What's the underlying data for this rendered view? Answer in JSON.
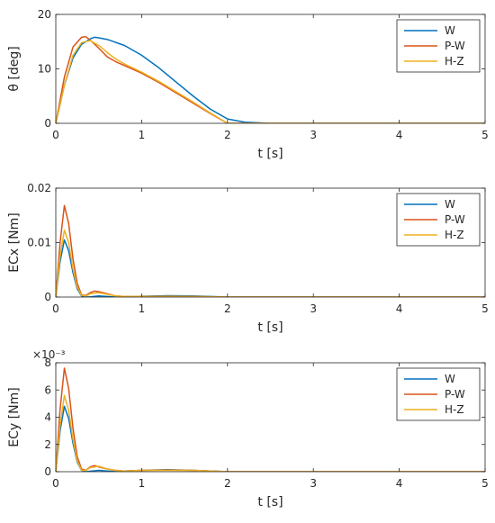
{
  "colors": {
    "W": "#0072BD",
    "P-W": "#D95319",
    "H-Z": "#EDB120",
    "axis": "#262626"
  },
  "chart_data": [
    {
      "type": "line",
      "xlabel": "t [s]",
      "ylabel": "θ [deg]",
      "xlim": [
        0,
        5
      ],
      "ylim": [
        0,
        20
      ],
      "xticks": [
        0,
        1,
        2,
        3,
        4,
        5
      ],
      "yticks": [
        0,
        10,
        20
      ],
      "ytick_labels": [
        "0",
        "10",
        "20"
      ],
      "exponent_label": "",
      "legend_position": "top-right",
      "series": [
        {
          "name": "W",
          "x": [
            0,
            0.1,
            0.2,
            0.3,
            0.4,
            0.45,
            0.5,
            0.6,
            0.8,
            1.0,
            1.2,
            1.4,
            1.6,
            1.8,
            2.0,
            2.2,
            2.5,
            5
          ],
          "y": [
            0,
            7,
            12,
            14.5,
            15.5,
            15.8,
            15.7,
            15.4,
            14.3,
            12.5,
            10.2,
            7.6,
            5,
            2.6,
            0.8,
            0.2,
            0,
            0
          ]
        },
        {
          "name": "P-W",
          "x": [
            0,
            0.1,
            0.2,
            0.3,
            0.35,
            0.4,
            0.5,
            0.6,
            0.7,
            0.8,
            1.0,
            1.2,
            1.4,
            1.6,
            1.8,
            2.0,
            5
          ],
          "y": [
            0,
            8.5,
            14,
            15.8,
            15.9,
            15.3,
            13.8,
            12.2,
            11.3,
            10.6,
            9.2,
            7.5,
            5.6,
            3.7,
            1.8,
            0,
            0
          ]
        },
        {
          "name": "H-Z",
          "x": [
            0,
            0.1,
            0.2,
            0.3,
            0.4,
            0.5,
            0.6,
            0.7,
            0.8,
            1.0,
            1.2,
            1.4,
            1.6,
            1.8,
            2.0,
            5
          ],
          "y": [
            0,
            7,
            12.5,
            14.8,
            15.2,
            14.3,
            13,
            11.8,
            10.9,
            9.4,
            7.7,
            5.8,
            3.9,
            1.9,
            0,
            0
          ]
        }
      ]
    },
    {
      "type": "line",
      "xlabel": "t [s]",
      "ylabel": "ECx [Nm]",
      "xlim": [
        0,
        5
      ],
      "ylim": [
        0,
        0.02
      ],
      "xticks": [
        0,
        1,
        2,
        3,
        4,
        5
      ],
      "yticks": [
        0,
        0.01,
        0.02
      ],
      "ytick_labels": [
        "0",
        "0.01",
        "0.02"
      ],
      "exponent_label": "",
      "legend_position": "top-right",
      "series": [
        {
          "name": "W",
          "x": [
            0,
            0.05,
            0.1,
            0.15,
            0.2,
            0.25,
            0.3,
            0.35,
            0.4,
            0.5,
            0.6,
            0.7,
            0.8,
            1.0,
            1.3,
            1.6,
            1.8,
            2.0,
            5
          ],
          "y": [
            0,
            0.0065,
            0.0105,
            0.0085,
            0.0045,
            0.0015,
            0.0002,
            0,
            5e-05,
            0.0002,
            0.0001,
            0,
            5e-05,
            0.00015,
            0.00025,
            0.0002,
            0.0001,
            0,
            0
          ]
        },
        {
          "name": "P-W",
          "x": [
            0,
            0.05,
            0.1,
            0.15,
            0.2,
            0.25,
            0.3,
            0.35,
            0.4,
            0.45,
            0.5,
            0.6,
            0.7,
            0.8,
            1.0,
            1.3,
            1.6,
            2.0,
            5
          ],
          "y": [
            0,
            0.01,
            0.0168,
            0.0135,
            0.007,
            0.0025,
            0.0004,
            0.0003,
            0.0008,
            0.0011,
            0.001,
            0.0006,
            0.0002,
            0.0001,
            0.0001,
            0.00015,
            0.0001,
            0,
            0
          ]
        },
        {
          "name": "H-Z",
          "x": [
            0,
            0.05,
            0.1,
            0.15,
            0.2,
            0.25,
            0.3,
            0.35,
            0.4,
            0.5,
            0.6,
            0.7,
            0.8,
            1.0,
            1.3,
            1.6,
            2.0,
            5
          ],
          "y": [
            0,
            0.0075,
            0.0123,
            0.01,
            0.0052,
            0.0018,
            0.0003,
            0.0002,
            0.0006,
            0.0008,
            0.0005,
            0.0002,
            0.0001,
            0.0001,
            0.0001,
            0.0001,
            0,
            0
          ]
        }
      ]
    },
    {
      "type": "line",
      "xlabel": "t [s]",
      "ylabel": "ECy [Nm]",
      "xlim": [
        0,
        5
      ],
      "ylim": [
        0,
        0.008
      ],
      "xticks": [
        0,
        1,
        2,
        3,
        4,
        5
      ],
      "yticks": [
        0,
        0.002,
        0.004,
        0.006,
        0.008
      ],
      "ytick_labels": [
        "0",
        "2",
        "4",
        "6",
        "8"
      ],
      "exponent_label": "×10⁻³",
      "legend_position": "top-right",
      "series": [
        {
          "name": "W",
          "x": [
            0,
            0.05,
            0.1,
            0.15,
            0.2,
            0.25,
            0.3,
            0.35,
            0.4,
            0.5,
            0.6,
            0.7,
            0.8,
            1.0,
            1.3,
            1.6,
            1.8,
            2.0,
            5
          ],
          "y": [
            0,
            0.003,
            0.0048,
            0.0039,
            0.0021,
            0.0007,
            0.0001,
            0,
            3e-05,
            0.0001,
            5e-05,
            0,
            5e-05,
            0.0001,
            0.00015,
            0.0001,
            5e-05,
            0,
            0
          ]
        },
        {
          "name": "P-W",
          "x": [
            0,
            0.05,
            0.1,
            0.15,
            0.2,
            0.25,
            0.3,
            0.35,
            0.4,
            0.45,
            0.5,
            0.6,
            0.7,
            0.8,
            1.0,
            1.3,
            1.6,
            2.0,
            5
          ],
          "y": [
            0,
            0.0046,
            0.0076,
            0.0061,
            0.0032,
            0.0011,
            0.0002,
            0.0001,
            0.00035,
            0.00045,
            0.00035,
            0.0002,
            0.0001,
            5e-05,
            0.0001,
            0.00012,
            0.0001,
            0,
            0
          ]
        },
        {
          "name": "H-Z",
          "x": [
            0,
            0.05,
            0.1,
            0.15,
            0.2,
            0.25,
            0.3,
            0.35,
            0.4,
            0.5,
            0.6,
            0.7,
            0.8,
            1.0,
            1.3,
            1.6,
            2.0,
            5
          ],
          "y": [
            0,
            0.0034,
            0.0056,
            0.0045,
            0.0024,
            0.0008,
            0.0001,
            0.0001,
            0.0003,
            0.0004,
            0.0002,
            0.0001,
            5e-05,
            0.0001,
            0.0001,
            0.0001,
            0,
            0
          ]
        }
      ]
    }
  ]
}
